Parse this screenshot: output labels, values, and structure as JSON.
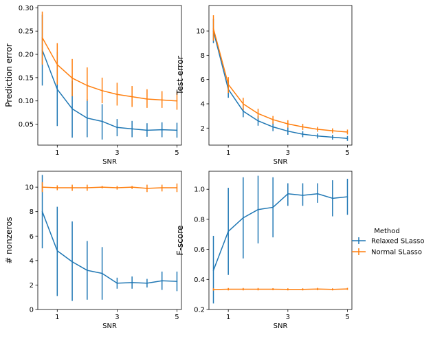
{
  "colors": {
    "relaxed": "#1f77b4",
    "normal": "#ff7f0e"
  },
  "legend": {
    "title": "Method",
    "entries": [
      "Relaxed SLasso",
      "Normal SLasso"
    ]
  },
  "chart_data": [
    {
      "type": "line",
      "title": "",
      "xlabel": "SNR",
      "ylabel": "Prediction error",
      "xlim": [
        0.35,
        5.15
      ],
      "ylim": [
        0.005,
        0.305
      ],
      "xticks": [
        1,
        3,
        5
      ],
      "xtick_labels": [
        "1",
        "3",
        "5"
      ],
      "yticks": [
        0.05,
        0.1,
        0.15,
        0.2,
        0.25,
        0.3
      ],
      "ytick_labels": [
        "0.05",
        "0.10",
        "0.15",
        "0.20",
        "0.25",
        "0.30"
      ],
      "x": [
        0.5,
        1.0,
        1.5,
        2.0,
        2.5,
        3.0,
        3.5,
        4.0,
        4.5,
        5.0
      ],
      "series": [
        {
          "name": "Relaxed SLasso",
          "values": [
            0.209,
            0.125,
            0.083,
            0.063,
            0.056,
            0.043,
            0.04,
            0.037,
            0.038,
            0.037
          ],
          "err_low": [
            0.133,
            0.046,
            0.021,
            0.022,
            0.017,
            0.024,
            0.022,
            0.023,
            0.022,
            0.021
          ],
          "err_high": [
            0.285,
            0.205,
            0.143,
            0.104,
            0.093,
            0.061,
            0.057,
            0.052,
            0.054,
            0.053
          ]
        },
        {
          "name": "Normal SLasso",
          "values": [
            0.236,
            0.178,
            0.149,
            0.133,
            0.122,
            0.114,
            0.109,
            0.104,
            0.102,
            0.1
          ],
          "err_low": [
            0.178,
            0.135,
            0.11,
            0.1,
            0.095,
            0.09,
            0.087,
            0.085,
            0.085,
            0.081
          ],
          "err_high": [
            0.292,
            0.224,
            0.19,
            0.172,
            0.15,
            0.139,
            0.132,
            0.125,
            0.121,
            0.12
          ]
        }
      ]
    },
    {
      "type": "line",
      "title": "",
      "xlabel": "SNR",
      "ylabel": "Test error",
      "xlim": [
        0.35,
        5.15
      ],
      "ylim": [
        0.6,
        12.1
      ],
      "xticks": [
        1,
        3,
        5
      ],
      "xtick_labels": [
        "1",
        "3",
        "5"
      ],
      "yticks": [
        2,
        4,
        6,
        8,
        10
      ],
      "ytick_labels": [
        "2",
        "4",
        "6",
        "8",
        "10"
      ],
      "x": [
        0.5,
        1.0,
        1.5,
        2.0,
        2.5,
        3.0,
        3.5,
        4.0,
        4.5,
        5.0
      ],
      "series": [
        {
          "name": "Relaxed SLasso",
          "values": [
            10.0,
            5.2,
            3.4,
            2.6,
            2.1,
            1.75,
            1.5,
            1.35,
            1.25,
            1.15
          ],
          "err_low": [
            9.0,
            4.5,
            2.9,
            2.2,
            1.75,
            1.45,
            1.25,
            1.15,
            1.05,
            0.95
          ],
          "err_high": [
            11.0,
            5.9,
            3.9,
            3.0,
            2.5,
            2.05,
            1.75,
            1.55,
            1.45,
            1.35
          ]
        },
        {
          "name": "Normal SLasso",
          "values": [
            10.2,
            5.6,
            4.0,
            3.2,
            2.7,
            2.35,
            2.1,
            1.9,
            1.78,
            1.68
          ],
          "err_low": [
            9.2,
            4.9,
            3.5,
            2.8,
            2.35,
            2.05,
            1.85,
            1.7,
            1.58,
            1.48
          ],
          "err_high": [
            11.3,
            6.2,
            4.5,
            3.6,
            3.0,
            2.65,
            2.35,
            2.1,
            1.98,
            1.88
          ]
        }
      ]
    },
    {
      "type": "line",
      "title": "",
      "xlabel": "SNR",
      "ylabel": "# nonzeros",
      "xlim": [
        0.35,
        5.15
      ],
      "ylim": [
        0,
        11.3
      ],
      "xticks": [
        1,
        3,
        5
      ],
      "xtick_labels": [
        "1",
        "3",
        "5"
      ],
      "yticks": [
        0,
        2,
        4,
        6,
        8,
        10
      ],
      "ytick_labels": [
        "0",
        "2",
        "4",
        "6",
        "8",
        "10"
      ],
      "x": [
        0.5,
        1.0,
        1.5,
        2.0,
        2.5,
        3.0,
        3.5,
        4.0,
        4.5,
        5.0
      ],
      "series": [
        {
          "name": "Relaxed SLasso",
          "values": [
            8.0,
            4.8,
            3.9,
            3.2,
            2.95,
            2.15,
            2.2,
            2.15,
            2.35,
            2.3
          ],
          "err_low": [
            5.0,
            1.1,
            0.7,
            0.8,
            0.8,
            1.7,
            1.7,
            1.8,
            1.6,
            1.5
          ],
          "err_high": [
            11.0,
            8.4,
            7.2,
            5.6,
            5.1,
            2.6,
            2.7,
            2.5,
            3.1,
            3.1
          ]
        },
        {
          "name": "Normal SLasso",
          "values": [
            10.0,
            9.95,
            9.95,
            9.95,
            10.0,
            9.95,
            10.0,
            9.9,
            9.95,
            9.95
          ],
          "err_low": [
            9.6,
            9.75,
            9.7,
            9.7,
            9.9,
            9.8,
            9.85,
            9.6,
            9.65,
            9.6
          ],
          "err_high": [
            10.4,
            10.15,
            10.2,
            10.2,
            10.1,
            10.1,
            10.1,
            10.2,
            10.2,
            10.3
          ]
        }
      ]
    },
    {
      "type": "line",
      "title": "",
      "xlabel": "SNR",
      "ylabel": "F-score",
      "xlim": [
        0.35,
        5.15
      ],
      "ylim": [
        0.2,
        1.12
      ],
      "xticks": [
        1,
        3,
        5
      ],
      "xtick_labels": [
        "1",
        "3",
        "5"
      ],
      "yticks": [
        0.2,
        0.4,
        0.6,
        0.8,
        1.0
      ],
      "ytick_labels": [
        "0.2",
        "0.4",
        "0.6",
        "0.8",
        "1.0"
      ],
      "x": [
        0.5,
        1.0,
        1.5,
        2.0,
        2.5,
        3.0,
        3.5,
        4.0,
        4.5,
        5.0
      ],
      "series": [
        {
          "name": "Relaxed SLasso",
          "values": [
            0.46,
            0.72,
            0.81,
            0.865,
            0.88,
            0.97,
            0.96,
            0.97,
            0.94,
            0.95
          ],
          "err_low": [
            0.24,
            0.43,
            0.54,
            0.64,
            0.68,
            0.89,
            0.89,
            0.91,
            0.82,
            0.83
          ],
          "err_high": [
            0.69,
            1.01,
            1.08,
            1.09,
            1.08,
            1.04,
            1.04,
            1.04,
            1.06,
            1.07
          ]
        },
        {
          "name": "Normal SLasso",
          "values": [
            0.333,
            0.335,
            0.335,
            0.335,
            0.335,
            0.334,
            0.334,
            0.336,
            0.334,
            0.337
          ],
          "err_low": [
            0.325,
            0.327,
            0.327,
            0.327,
            0.328,
            0.327,
            0.327,
            0.328,
            0.327,
            0.33
          ],
          "err_high": [
            0.341,
            0.343,
            0.343,
            0.343,
            0.342,
            0.341,
            0.341,
            0.344,
            0.341,
            0.344
          ]
        }
      ]
    }
  ]
}
